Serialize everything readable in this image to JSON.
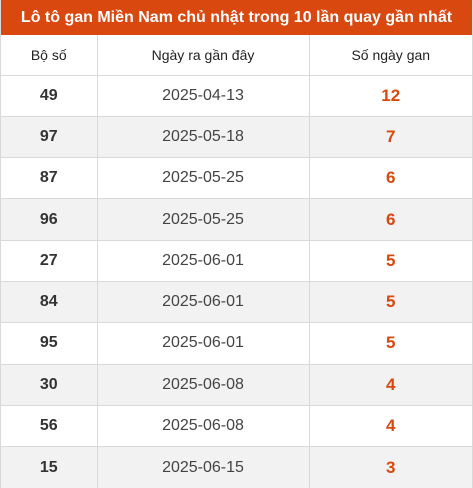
{
  "title": "Lô tô gan Miền Nam chủ nhật trong 10 lần quay gần nhất",
  "headers": [
    "Bộ số",
    "Ngày ra gần đây",
    "Số ngày gan"
  ],
  "rows": [
    {
      "number": "49",
      "date": "2025-04-13",
      "days": "12"
    },
    {
      "number": "97",
      "date": "2025-05-18",
      "days": "7"
    },
    {
      "number": "87",
      "date": "2025-05-25",
      "days": "6"
    },
    {
      "number": "96",
      "date": "2025-05-25",
      "days": "6"
    },
    {
      "number": "27",
      "date": "2025-06-01",
      "days": "5"
    },
    {
      "number": "84",
      "date": "2025-06-01",
      "days": "5"
    },
    {
      "number": "95",
      "date": "2025-06-01",
      "days": "5"
    },
    {
      "number": "30",
      "date": "2025-06-08",
      "days": "4"
    },
    {
      "number": "56",
      "date": "2025-06-08",
      "days": "4"
    },
    {
      "number": "15",
      "date": "2025-06-15",
      "days": "3"
    }
  ],
  "colors": {
    "accent": "#d9480f",
    "stripe": "#f2f2f2",
    "border": "#d9d9d9"
  }
}
